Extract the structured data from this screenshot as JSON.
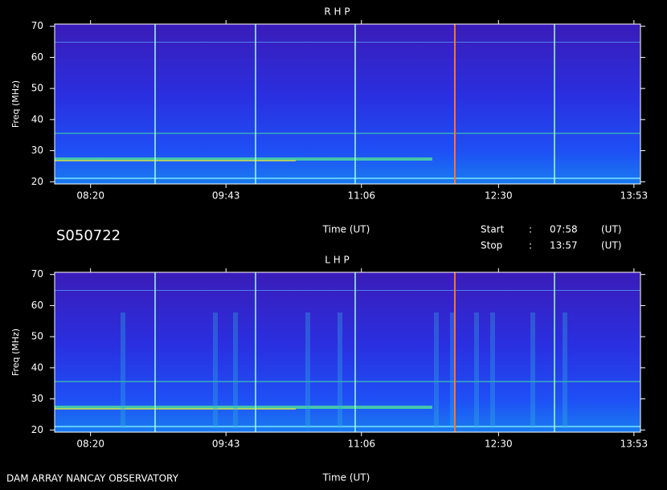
{
  "chart_data": [
    {
      "type": "spectrogram",
      "title": "R H P",
      "ylabel": "Freq (MHz)",
      "xlabel": "Time (UT)",
      "ylim": [
        19.3,
        70.7
      ],
      "yticks": [
        20,
        30,
        40,
        50,
        60,
        70
      ],
      "xlim": [
        478,
        837
      ],
      "xticks": [
        {
          "value": 500,
          "label": "08:20"
        },
        {
          "value": 583,
          "label": "09:43"
        },
        {
          "value": 666,
          "label": "11:06"
        },
        {
          "value": 750,
          "label": "12:30"
        },
        {
          "value": 833,
          "label": "13:53"
        }
      ]
    },
    {
      "type": "spectrogram",
      "title": "L H P",
      "ylabel": "Freq (MHz)",
      "xlabel": "Time (UT)",
      "ylim": [
        19.3,
        70.7
      ],
      "yticks": [
        20,
        30,
        40,
        50,
        60,
        70
      ],
      "xlim": [
        478,
        837
      ],
      "xticks": [
        {
          "value": 500,
          "label": "08:20"
        },
        {
          "value": 583,
          "label": "09:43"
        },
        {
          "value": 666,
          "label": "11:06"
        },
        {
          "value": 750,
          "label": "12:30"
        },
        {
          "value": 833,
          "label": "13:53"
        }
      ]
    }
  ],
  "header": {
    "id": "S050722",
    "start_label": "Start",
    "stop_label": "Stop",
    "sep": ":",
    "start": "07:58",
    "stop": "13:57",
    "unit": "(UT)"
  },
  "footer": "DAM ARRAY  NANCAY OBSERVATORY"
}
